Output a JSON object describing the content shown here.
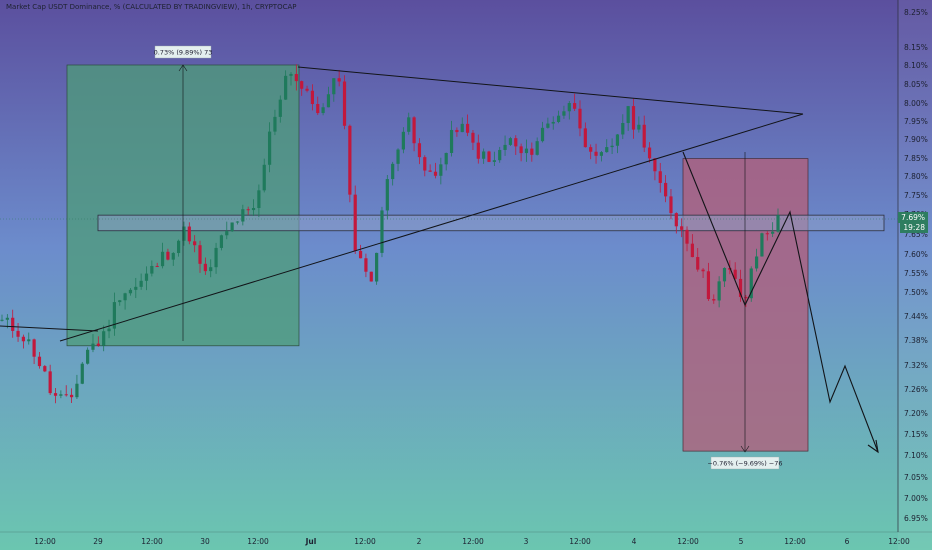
{
  "header": {
    "title": "Market Cap USDT Dominance, % (CALCULATED BY TRADINGVIEW), 1h, CRYPTOCAP"
  },
  "badges": {
    "last_price": "7.69%",
    "countdown": "19:28"
  },
  "colors": {
    "bg_top": "#5b4f9e",
    "bg_mid": "#6c8ccc",
    "bg_bottom": "#6bc6b0",
    "up": "#1f7a5c",
    "down": "#c2183c",
    "long_box": "#4e9c78",
    "short_box": "#b0607c",
    "trend": "#121418",
    "zone_fill": "#8d9ec9",
    "label_bg": "#e4efef"
  },
  "measures": {
    "long_label": "0.73% (9.89%) 73",
    "short_label": "−0.76% (−9.69%) −76"
  },
  "chart_data": {
    "type": "candlestick",
    "title": "Market Cap USDT Dominance, % (CALCULATED BY TRADINGVIEW), 1h, CRYPTOCAP",
    "y_ticks": [
      "8.25%",
      "8.15%",
      "8.10%",
      "8.05%",
      "8.00%",
      "7.95%",
      "7.90%",
      "7.85%",
      "7.80%",
      "7.75%",
      "7.70%",
      "7.65%",
      "7.60%",
      "7.55%",
      "7.50%",
      "7.44%",
      "7.38%",
      "7.32%",
      "7.26%",
      "7.20%",
      "7.15%",
      "7.10%",
      "7.05%",
      "7.00%",
      "6.95%"
    ],
    "x_ticks": [
      "12:00",
      "29",
      "12:00",
      "30",
      "12:00",
      "Jul",
      "12:00",
      "2",
      "12:00",
      "3",
      "12:00",
      "4",
      "12:00",
      "5",
      "12:00",
      "6",
      "12:00"
    ],
    "last_value": 7.69,
    "ylim": [
      6.93,
      8.27
    ],
    "waypoints": [
      7.44,
      7.42,
      7.36,
      7.25,
      7.23,
      7.37,
      7.4,
      7.52,
      7.53,
      7.58,
      7.63,
      7.68,
      7.55,
      7.65,
      7.71,
      7.72,
      7.95,
      8.1,
      8.02,
      7.98,
      8.08,
      7.6,
      7.56,
      7.85,
      7.96,
      7.82,
      7.84,
      7.95,
      7.89,
      7.84,
      7.91,
      7.86,
      7.93,
      7.98,
      8.0,
      7.84,
      7.88,
      7.98,
      7.92,
      7.78,
      7.7,
      7.62,
      7.5,
      7.58,
      7.49,
      7.66,
      7.7
    ],
    "long_position": {
      "entry": 7.38,
      "target": 8.1
    },
    "short_position": {
      "entry": 7.86,
      "target": 7.11
    },
    "zone": {
      "low": 7.675,
      "high": 7.715
    },
    "measure_long": "0.73% (9.89%) 73",
    "measure_short": "−0.76% (−9.69%) −76"
  }
}
